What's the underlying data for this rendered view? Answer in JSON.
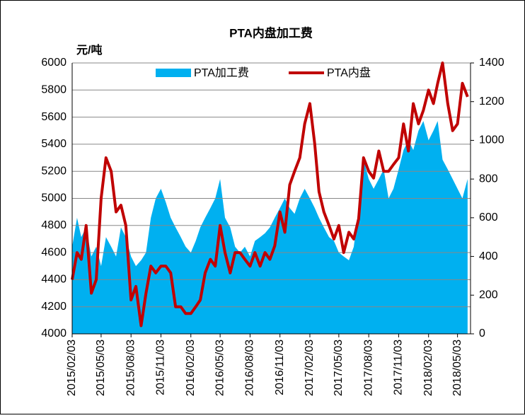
{
  "chart_data": {
    "type": "area-line",
    "title": "PTA内盘加工费",
    "y_label": "元/吨",
    "x": [
      "2015/02/03",
      "2015/02/18",
      "2015/03/03",
      "2015/03/18",
      "2015/04/03",
      "2015/04/18",
      "2015/05/03",
      "2015/05/18",
      "2015/06/03",
      "2015/06/18",
      "2015/07/03",
      "2015/07/18",
      "2015/08/03",
      "2015/08/18",
      "2015/09/03",
      "2015/09/18",
      "2015/10/03",
      "2015/10/18",
      "2015/11/03",
      "2015/11/18",
      "2015/12/03",
      "2015/12/18",
      "2016/01/03",
      "2016/01/18",
      "2016/02/03",
      "2016/02/18",
      "2016/03/03",
      "2016/03/18",
      "2016/04/03",
      "2016/04/18",
      "2016/05/03",
      "2016/05/18",
      "2016/06/03",
      "2016/06/18",
      "2016/07/03",
      "2016/07/18",
      "2016/08/03",
      "2016/08/18",
      "2016/09/03",
      "2016/09/18",
      "2016/10/03",
      "2016/10/18",
      "2016/11/03",
      "2016/11/18",
      "2016/12/03",
      "2016/12/18",
      "2017/01/03",
      "2017/01/18",
      "2017/02/03",
      "2017/02/18",
      "2017/03/03",
      "2017/03/18",
      "2017/04/03",
      "2017/04/18",
      "2017/05/03",
      "2017/05/18",
      "2017/06/03",
      "2017/06/18",
      "2017/07/03",
      "2017/07/18",
      "2017/08/03",
      "2017/08/18",
      "2017/09/03",
      "2017/09/18",
      "2017/10/03",
      "2017/10/18",
      "2017/11/03",
      "2017/11/18",
      "2017/12/03",
      "2017/12/18",
      "2018/01/03",
      "2018/01/18",
      "2018/02/03",
      "2018/02/18",
      "2018/03/03",
      "2018/03/18",
      "2018/04/03",
      "2018/04/18",
      "2018/05/03",
      "2018/05/18",
      "2018/06/03"
    ],
    "series": [
      {
        "name": "PTA加工费",
        "color": "#00b0f0",
        "axis": "y2",
        "kind": "area",
        "values": [
          450,
          600,
          500,
          550,
          400,
          450,
          350,
          500,
          450,
          400,
          550,
          500,
          400,
          350,
          380,
          420,
          600,
          700,
          750,
          680,
          600,
          550,
          500,
          450,
          420,
          480,
          550,
          600,
          650,
          700,
          800,
          600,
          550,
          450,
          420,
          450,
          400,
          480,
          500,
          520,
          550,
          600,
          650,
          700,
          650,
          620,
          700,
          750,
          700,
          650,
          600,
          550,
          500,
          480,
          420,
          400,
          380,
          450,
          650,
          900,
          800,
          750,
          800,
          850,
          700,
          750,
          850,
          950,
          1000,
          950,
          1050,
          1100,
          1000,
          1050,
          1100,
          900,
          850,
          800,
          750,
          700,
          800
        ]
      },
      {
        "name": "PTA内盘",
        "color": "#c00000",
        "kind": "line",
        "values": [
          4400,
          4600,
          4550,
          4800,
          4300,
          4400,
          5000,
          5300,
          5200,
          4900,
          4950,
          4800,
          4250,
          4350,
          4060,
          4300,
          4500,
          4450,
          4500,
          4500,
          4450,
          4200,
          4200,
          4150,
          4150,
          4200,
          4250,
          4450,
          4550,
          4500,
          4800,
          4600,
          4450,
          4600,
          4600,
          4550,
          4500,
          4600,
          4500,
          4600,
          4550,
          4650,
          4900,
          4750,
          5100,
          5200,
          5300,
          5550,
          5700,
          5400,
          5050,
          4900,
          4800,
          4700,
          4800,
          4600,
          4750,
          4700,
          4850,
          5300,
          5200,
          5150,
          5350,
          5200,
          5200,
          5250,
          5300,
          5550,
          5350,
          5700,
          5550,
          5650,
          5800,
          5700,
          5850,
          6000,
          5700,
          5500,
          5550,
          5850,
          5750
        ]
      }
    ],
    "xlim": [
      "2015/02/03",
      "2018/06/12"
    ],
    "xticks": [
      "2015/02/03",
      "2015/05/03",
      "2015/08/03",
      "2015/11/03",
      "2016/02/03",
      "2016/05/03",
      "2016/08/03",
      "2016/11/03",
      "2017/02/03",
      "2017/05/03",
      "2017/08/03",
      "2017/11/03",
      "2018/02/03",
      "2018/05/03"
    ],
    "ylim": [
      4000,
      6000
    ],
    "yticks": [
      4000,
      4200,
      4400,
      4600,
      4800,
      5000,
      5200,
      5400,
      5600,
      5800,
      6000
    ],
    "y2lim": [
      0,
      1400
    ],
    "y2ticks": [
      0,
      200,
      400,
      600,
      800,
      1000,
      1200,
      1400
    ],
    "grid": true,
    "legend": "top"
  }
}
